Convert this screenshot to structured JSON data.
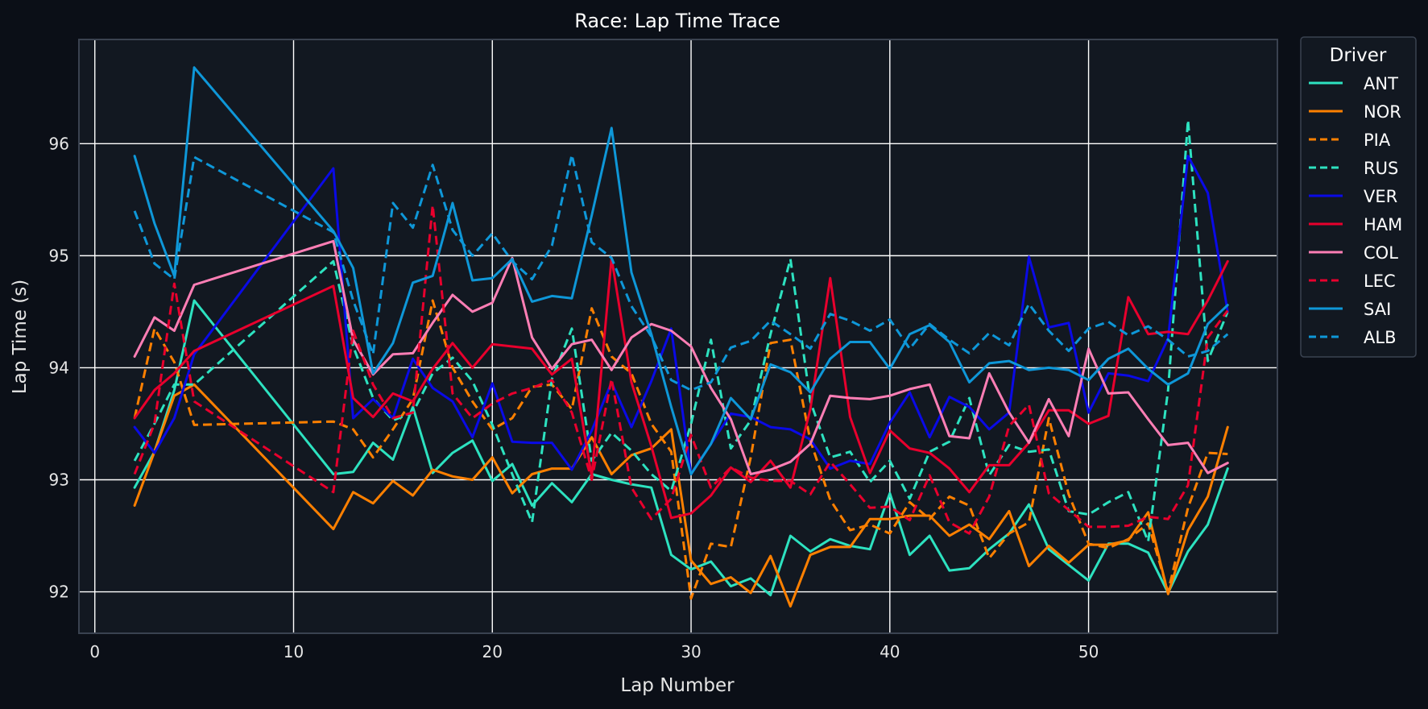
{
  "chart_data": {
    "type": "line",
    "title": "Race: Lap Time Trace",
    "xlabel": "Lap Number",
    "ylabel": "Lap Time (s)",
    "xlim": [
      -0.8,
      59.5
    ],
    "ylim": [
      91.63,
      96.93
    ],
    "xticks": [
      0,
      10,
      20,
      30,
      40,
      50
    ],
    "yticks": [
      92,
      93,
      94,
      95,
      96
    ],
    "grid": true,
    "legend": {
      "title": "Driver",
      "placement": "outside-top-right"
    },
    "colors": {
      "background": "#0b0f17",
      "plot_background": "#121821",
      "grid": "#ffffff",
      "frame": "#3a4250"
    },
    "series": [
      {
        "name": "ANT",
        "color": "#2de2c0",
        "dash": "solid",
        "x": [
          2,
          3,
          4,
          5,
          12,
          13,
          14,
          15,
          16,
          17,
          18,
          19,
          20,
          21,
          22,
          23,
          24,
          25,
          26,
          27,
          28,
          29,
          30,
          31,
          32,
          33,
          34,
          35,
          36,
          37,
          38,
          39,
          40,
          41,
          42,
          43,
          44,
          45,
          46,
          47,
          48,
          49,
          50,
          51,
          52,
          53,
          54,
          55,
          56,
          57
        ],
        "y": [
          92.93,
          93.25,
          93.8,
          94.6,
          93.05,
          93.07,
          93.33,
          93.18,
          93.65,
          93.06,
          93.24,
          93.35,
          92.99,
          93.14,
          92.77,
          92.97,
          92.8,
          93.05,
          93.0,
          92.96,
          92.93,
          92.33,
          92.2,
          92.27,
          92.05,
          92.12,
          91.97,
          92.5,
          92.36,
          92.47,
          92.41,
          92.38,
          92.88,
          92.33,
          92.5,
          92.19,
          92.21,
          92.38,
          92.52,
          92.78,
          92.38,
          92.24,
          92.1,
          92.43,
          92.43,
          92.35,
          91.99,
          92.36,
          92.6,
          93.1
        ]
      },
      {
        "name": "NOR",
        "color": "#ff8000",
        "dash": "solid",
        "x": [
          2,
          3,
          4,
          5,
          12,
          13,
          14,
          15,
          16,
          17,
          18,
          19,
          20,
          21,
          22,
          23,
          24,
          25,
          26,
          27,
          28,
          29,
          30,
          31,
          32,
          33,
          34,
          35,
          36,
          37,
          38,
          39,
          40,
          41,
          42,
          43,
          44,
          45,
          46,
          47,
          48,
          49,
          50,
          51,
          52,
          53,
          54,
          55,
          56,
          57
        ],
        "y": [
          92.77,
          93.25,
          93.75,
          93.85,
          92.56,
          92.89,
          92.79,
          92.99,
          92.86,
          93.09,
          93.03,
          93.0,
          93.2,
          92.88,
          93.05,
          93.1,
          93.1,
          93.38,
          93.05,
          93.22,
          93.28,
          93.45,
          92.28,
          92.07,
          92.13,
          91.99,
          92.32,
          91.87,
          92.33,
          92.4,
          92.4,
          92.65,
          92.65,
          92.68,
          92.68,
          92.5,
          92.6,
          92.47,
          92.72,
          92.23,
          92.41,
          92.26,
          92.42,
          92.42,
          92.46,
          92.71,
          91.98,
          92.55,
          92.85,
          93.47
        ]
      },
      {
        "name": "PIA",
        "color": "#ff8000",
        "dash": "dashed",
        "x": [
          2,
          3,
          4,
          5,
          12,
          13,
          14,
          15,
          16,
          17,
          18,
          19,
          20,
          21,
          22,
          23,
          24,
          25,
          26,
          27,
          28,
          29,
          30,
          31,
          32,
          33,
          34,
          35,
          36,
          37,
          38,
          39,
          40,
          41,
          42,
          43,
          44,
          45,
          46,
          47,
          48,
          49,
          50,
          51,
          52,
          53,
          54,
          55,
          56,
          57
        ],
        "y": [
          93.55,
          94.35,
          94.05,
          93.49,
          93.52,
          93.45,
          93.2,
          93.45,
          93.72,
          94.6,
          94.0,
          93.7,
          93.45,
          93.55,
          93.83,
          93.85,
          93.63,
          94.53,
          94.1,
          93.95,
          93.5,
          93.25,
          91.94,
          92.43,
          92.4,
          93.2,
          94.22,
          94.25,
          93.35,
          92.82,
          92.55,
          92.6,
          92.52,
          92.8,
          92.65,
          92.85,
          92.77,
          92.3,
          92.52,
          92.62,
          93.55,
          92.87,
          92.43,
          92.39,
          92.47,
          92.61,
          92.0,
          92.75,
          93.24,
          93.23
        ]
      },
      {
        "name": "RUS",
        "color": "#2de2c0",
        "dash": "dashed",
        "x": [
          2,
          3,
          4,
          5,
          12,
          13,
          14,
          15,
          16,
          17,
          18,
          19,
          20,
          21,
          22,
          23,
          24,
          25,
          26,
          27,
          28,
          29,
          30,
          31,
          32,
          33,
          34,
          35,
          36,
          37,
          38,
          39,
          40,
          41,
          42,
          43,
          44,
          45,
          46,
          47,
          48,
          49,
          50,
          51,
          52,
          53,
          54,
          55,
          56,
          57
        ],
        "y": [
          93.17,
          93.5,
          93.85,
          93.85,
          94.95,
          94.19,
          93.73,
          93.53,
          93.6,
          93.95,
          94.09,
          93.88,
          93.49,
          93.05,
          92.62,
          93.9,
          94.35,
          93.17,
          93.42,
          93.26,
          93.05,
          92.9,
          93.5,
          94.25,
          93.28,
          93.53,
          94.3,
          94.97,
          93.7,
          93.2,
          93.25,
          92.98,
          93.17,
          92.83,
          93.25,
          93.34,
          93.73,
          93.04,
          93.31,
          93.25,
          93.27,
          92.72,
          92.69,
          92.8,
          92.89,
          92.45,
          93.8,
          96.21,
          94.06,
          94.5
        ]
      },
      {
        "name": "VER",
        "color": "#0a0ae6",
        "dash": "solid",
        "x": [
          2,
          3,
          4,
          5,
          12,
          13,
          14,
          15,
          16,
          17,
          18,
          19,
          20,
          21,
          22,
          23,
          24,
          25,
          26,
          27,
          28,
          29,
          30,
          31,
          32,
          33,
          34,
          35,
          36,
          37,
          38,
          39,
          40,
          41,
          42,
          43,
          44,
          45,
          46,
          47,
          48,
          49,
          50,
          51,
          52,
          53,
          54,
          55,
          56,
          57
        ],
        "y": [
          93.47,
          93.24,
          93.55,
          94.12,
          95.78,
          93.55,
          93.72,
          93.55,
          94.08,
          93.82,
          93.7,
          93.38,
          93.86,
          93.34,
          93.33,
          93.33,
          93.09,
          93.44,
          93.87,
          93.47,
          93.88,
          94.35,
          93.05,
          93.32,
          93.59,
          93.56,
          93.47,
          93.45,
          93.36,
          93.1,
          93.17,
          93.14,
          93.51,
          93.78,
          93.38,
          93.74,
          93.65,
          93.45,
          93.6,
          94.99,
          94.36,
          94.4,
          93.6,
          93.95,
          93.93,
          93.88,
          94.26,
          95.89,
          95.56,
          94.5
        ]
      },
      {
        "name": "HAM",
        "color": "#e8002d",
        "dash": "solid",
        "x": [
          2,
          3,
          4,
          5,
          12,
          13,
          14,
          15,
          16,
          17,
          18,
          19,
          20,
          21,
          22,
          23,
          24,
          25,
          26,
          27,
          28,
          29,
          30,
          31,
          32,
          33,
          34,
          35,
          36,
          37,
          38,
          39,
          40,
          41,
          42,
          43,
          44,
          45,
          46,
          47,
          48,
          49,
          50,
          51,
          52,
          53,
          54,
          55,
          56,
          57
        ],
        "y": [
          93.55,
          93.8,
          93.95,
          94.15,
          94.73,
          93.73,
          93.56,
          93.77,
          93.7,
          93.99,
          94.22,
          94.0,
          94.21,
          94.19,
          94.17,
          93.94,
          94.08,
          93.03,
          94.98,
          93.87,
          93.3,
          92.66,
          92.7,
          92.86,
          93.11,
          92.98,
          93.17,
          92.93,
          93.63,
          94.8,
          93.56,
          93.06,
          93.44,
          93.28,
          93.24,
          93.1,
          92.89,
          93.13,
          93.13,
          93.33,
          93.62,
          93.62,
          93.5,
          93.57,
          94.63,
          94.3,
          94.32,
          94.3,
          94.6,
          94.95
        ]
      },
      {
        "name": "COL",
        "color": "#ff7eb5",
        "dash": "solid",
        "x": [
          2,
          3,
          4,
          5,
          12,
          13,
          14,
          15,
          16,
          17,
          18,
          19,
          20,
          21,
          22,
          23,
          24,
          25,
          26,
          27,
          28,
          29,
          30,
          31,
          32,
          33,
          34,
          35,
          36,
          37,
          38,
          39,
          40,
          41,
          42,
          43,
          44,
          45,
          46,
          47,
          48,
          49,
          50,
          51,
          52,
          53,
          54,
          55,
          56,
          57
        ],
        "y": [
          94.1,
          94.45,
          94.33,
          94.74,
          95.13,
          94.25,
          93.94,
          94.12,
          94.13,
          94.4,
          94.65,
          94.5,
          94.58,
          94.98,
          94.27,
          93.99,
          94.21,
          94.25,
          93.98,
          94.27,
          94.39,
          94.33,
          94.19,
          93.82,
          93.54,
          93.05,
          93.09,
          93.16,
          93.32,
          93.75,
          93.73,
          93.72,
          93.75,
          93.81,
          93.85,
          93.39,
          93.37,
          93.95,
          93.6,
          93.33,
          93.72,
          93.39,
          94.17,
          93.77,
          93.78,
          93.54,
          93.31,
          93.33,
          93.06,
          93.15
        ]
      },
      {
        "name": "LEC",
        "color": "#e8002d",
        "dash": "dashed",
        "x": [
          2,
          3,
          4,
          5,
          12,
          13,
          14,
          15,
          16,
          17,
          18,
          19,
          20,
          21,
          22,
          23,
          24,
          25,
          26,
          27,
          28,
          29,
          30,
          31,
          32,
          33,
          34,
          35,
          36,
          37,
          38,
          39,
          40,
          41,
          42,
          43,
          44,
          45,
          46,
          47,
          48,
          49,
          50,
          51,
          52,
          53,
          54,
          55,
          56,
          57
        ],
        "y": [
          93.05,
          93.5,
          94.75,
          93.7,
          92.89,
          94.33,
          93.85,
          93.55,
          93.6,
          95.45,
          93.77,
          93.55,
          93.68,
          93.77,
          93.82,
          93.89,
          93.6,
          93.0,
          93.9,
          92.93,
          92.65,
          92.83,
          93.4,
          92.93,
          93.11,
          93.02,
          92.99,
          92.99,
          92.87,
          93.16,
          92.96,
          92.75,
          92.76,
          92.64,
          93.04,
          92.62,
          92.52,
          92.85,
          93.48,
          93.67,
          92.88,
          92.73,
          92.58,
          92.58,
          92.59,
          92.67,
          92.65,
          92.95,
          94.27,
          94.51
        ]
      },
      {
        "name": "SAI",
        "color": "#0e97d8",
        "dash": "solid",
        "x": [
          2,
          3,
          4,
          5,
          12,
          13,
          14,
          15,
          16,
          17,
          18,
          19,
          20,
          21,
          22,
          23,
          24,
          25,
          26,
          27,
          28,
          29,
          30,
          31,
          32,
          33,
          34,
          35,
          36,
          37,
          38,
          39,
          40,
          41,
          42,
          43,
          44,
          45,
          46,
          47,
          48,
          49,
          50,
          51,
          52,
          53,
          54,
          55,
          56,
          57
        ],
        "y": [
          95.89,
          95.29,
          94.82,
          96.68,
          95.22,
          94.89,
          93.95,
          94.22,
          94.76,
          94.82,
          95.47,
          94.78,
          94.8,
          94.97,
          94.59,
          94.64,
          94.62,
          95.36,
          96.14,
          94.85,
          94.3,
          93.65,
          93.05,
          93.32,
          93.73,
          93.54,
          94.03,
          93.96,
          93.78,
          94.08,
          94.23,
          94.23,
          93.99,
          94.3,
          94.38,
          94.23,
          93.87,
          94.04,
          94.06,
          93.98,
          94.0,
          93.98,
          93.89,
          94.08,
          94.17,
          93.99,
          93.85,
          93.95,
          94.39,
          94.56
        ]
      },
      {
        "name": "ALB",
        "color": "#0e97d8",
        "dash": "dashed",
        "x": [
          2,
          3,
          4,
          5,
          12,
          13,
          14,
          15,
          16,
          17,
          18,
          19,
          20,
          21,
          22,
          23,
          24,
          25,
          26,
          27,
          28,
          29,
          30,
          31,
          32,
          33,
          34,
          35,
          36,
          37,
          38,
          39,
          40,
          41,
          42,
          43,
          44,
          45,
          46,
          47,
          48,
          49,
          50,
          51,
          52,
          53,
          54,
          55,
          56,
          57
        ],
        "y": [
          95.4,
          94.93,
          94.79,
          95.88,
          95.21,
          94.6,
          94.12,
          95.47,
          95.25,
          95.81,
          95.23,
          95.0,
          95.2,
          94.95,
          94.79,
          95.09,
          95.9,
          95.12,
          94.98,
          94.55,
          94.28,
          93.89,
          93.8,
          93.87,
          94.18,
          94.24,
          94.42,
          94.3,
          94.17,
          94.48,
          94.42,
          94.33,
          94.43,
          94.17,
          94.39,
          94.25,
          94.13,
          94.31,
          94.2,
          94.57,
          94.33,
          94.15,
          94.35,
          94.41,
          94.29,
          94.37,
          94.25,
          94.1,
          94.15,
          94.3
        ]
      }
    ]
  }
}
